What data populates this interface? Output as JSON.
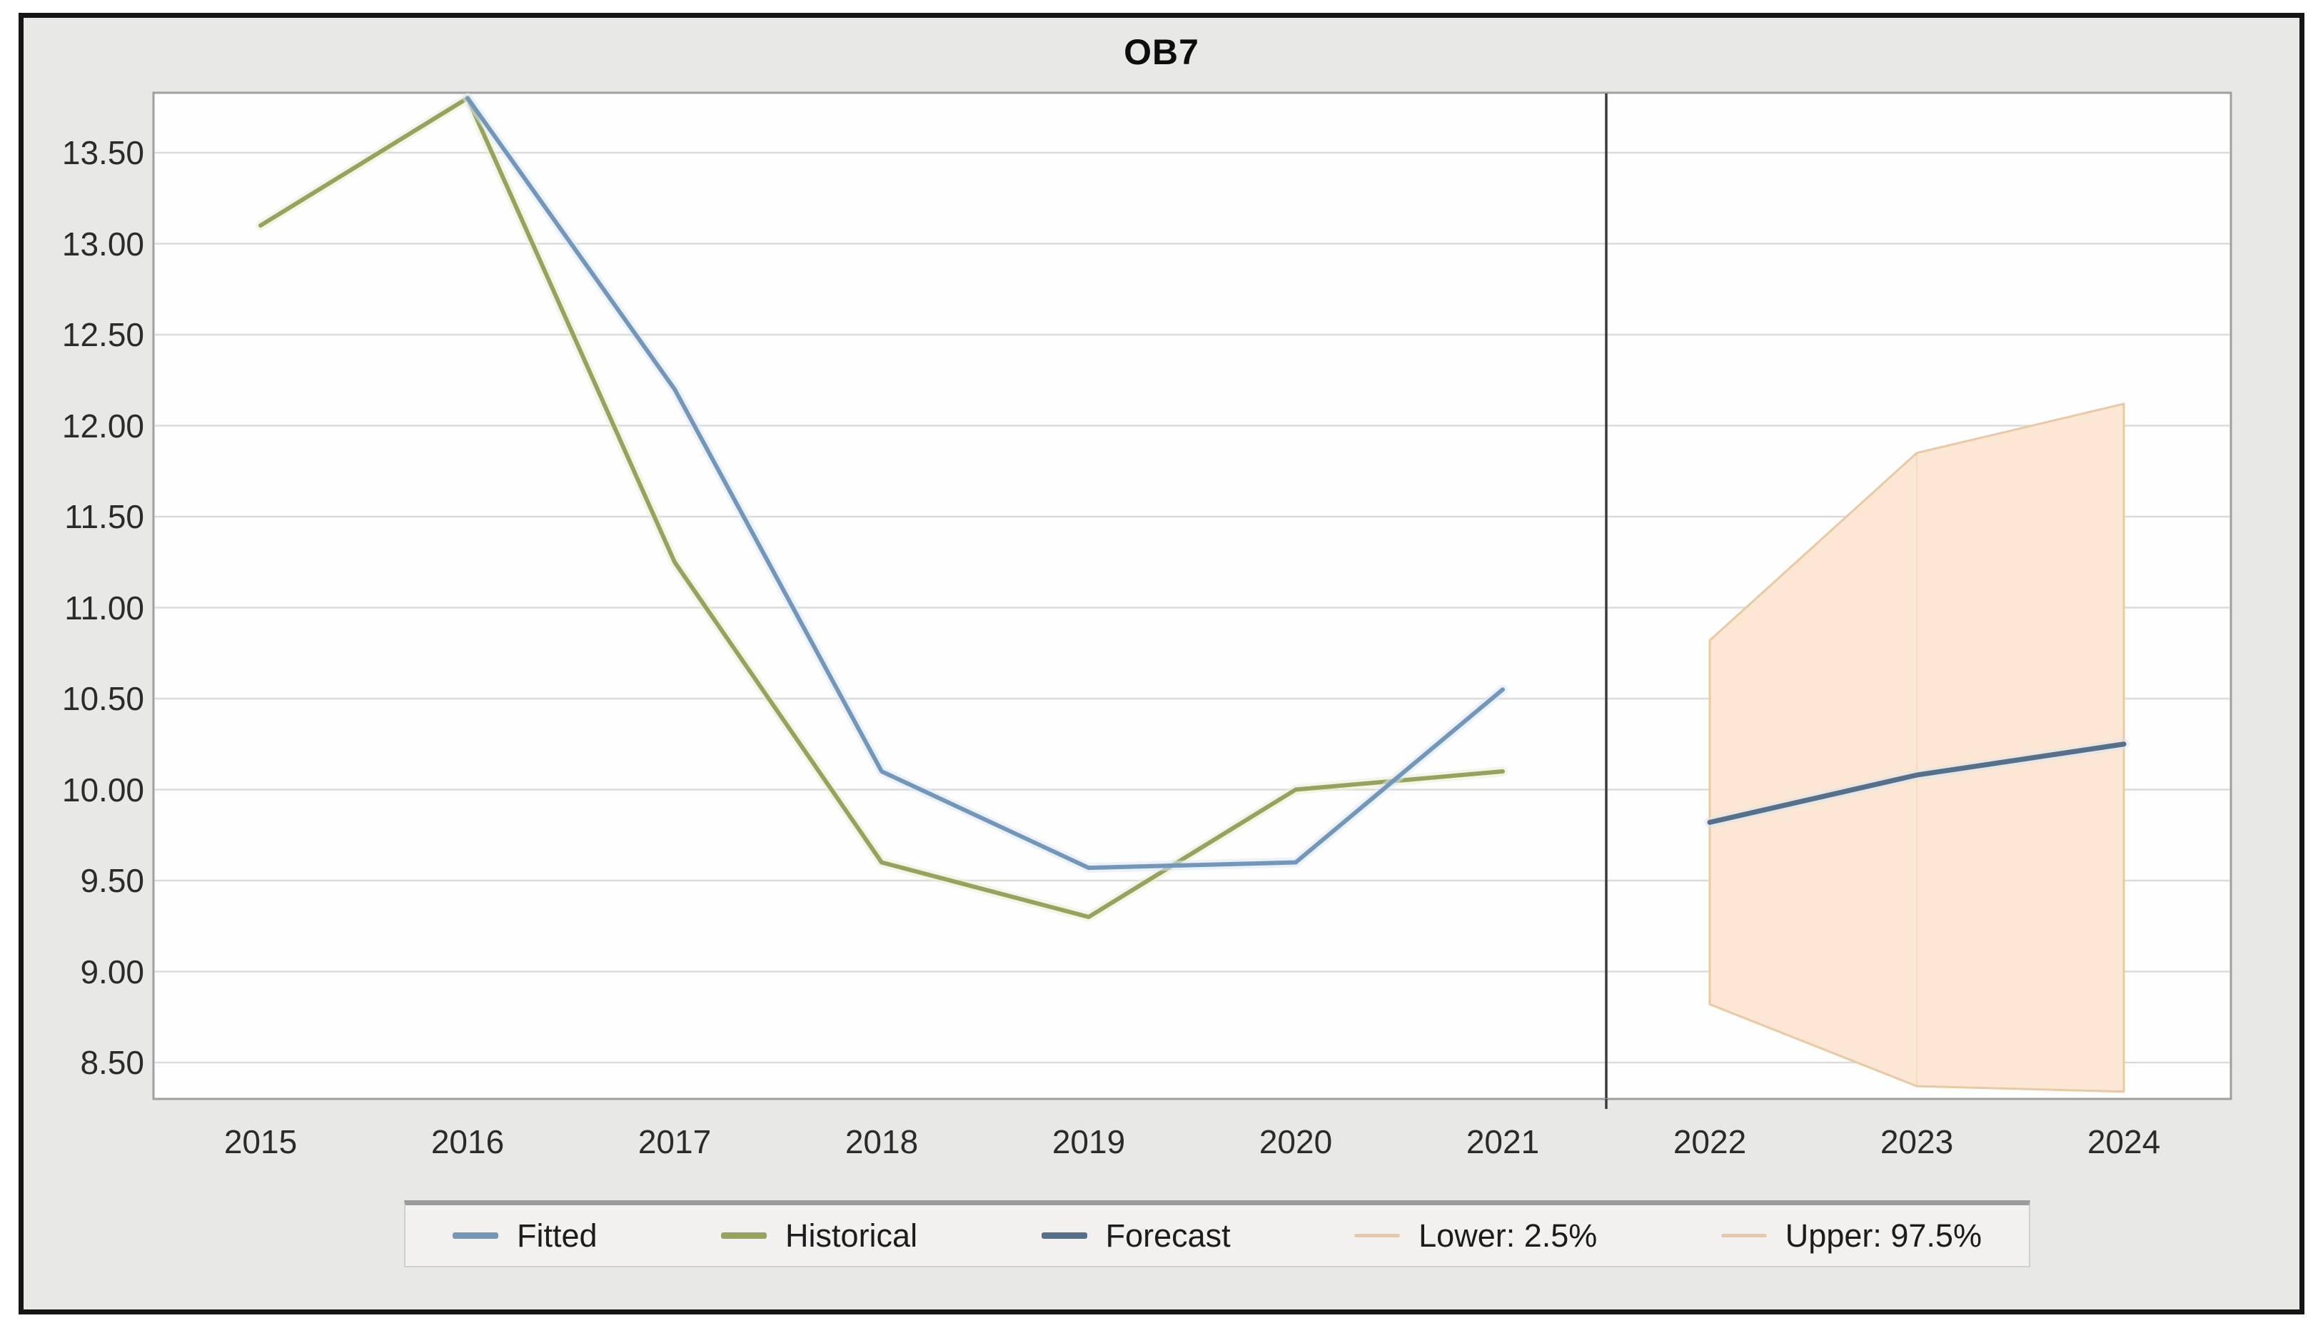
{
  "window": {
    "title": "OB7"
  },
  "chart_data": {
    "type": "line",
    "title": "OB7",
    "x": [
      2015,
      2016,
      2017,
      2018,
      2019,
      2020,
      2021,
      2022,
      2023,
      2024
    ],
    "x_tick_labels": [
      "2015",
      "2016",
      "2017",
      "2018",
      "2019",
      "2020",
      "2021",
      "2022",
      "2023",
      "2024"
    ],
    "y_tick_labels": [
      "13.50",
      "13.00",
      "12.50",
      "12.00",
      "11.50",
      "11.00",
      "10.50",
      "10.00",
      "9.50",
      "9.00",
      "8.50"
    ],
    "y_tick_values": [
      13.5,
      13.0,
      12.5,
      12.0,
      11.5,
      11.0,
      10.5,
      10.0,
      9.5,
      9.0,
      8.5
    ],
    "ylim": [
      8.3,
      13.83
    ],
    "grid": "horizontal-major-only",
    "forecast_divider_x": 2021.5,
    "series": [
      {
        "name": "Fitted",
        "x": [
          2016,
          2017,
          2018,
          2019,
          2020,
          2021
        ],
        "values": [
          13.8,
          12.2,
          10.1,
          9.57,
          9.6,
          10.55
        ],
        "color": "#7397ba",
        "halo": "#dde8f1",
        "width": 6
      },
      {
        "name": "Historical",
        "x": [
          2015,
          2016,
          2017,
          2018,
          2019,
          2020,
          2021
        ],
        "values": [
          13.1,
          13.8,
          11.25,
          9.6,
          9.3,
          10.0,
          10.1
        ],
        "color": "#96a35c",
        "halo": "#e9edd6",
        "width": 6
      },
      {
        "name": "Forecast",
        "x": [
          2022,
          2023,
          2024
        ],
        "values": [
          9.82,
          10.08,
          10.25
        ],
        "color": "#54708b",
        "halo": "#dbe3ea",
        "width": 7
      },
      {
        "name": "Lower: 2.5%",
        "x": [
          2022,
          2023,
          2024
        ],
        "values": [
          8.82,
          8.37,
          8.34
        ],
        "color": "#e9c9a4",
        "halo": "#fbe7d3",
        "width": 3
      },
      {
        "name": "Upper: 97.5%",
        "x": [
          2022,
          2023,
          2024
        ],
        "values": [
          10.82,
          11.85,
          12.12
        ],
        "color": "#e9c9a4",
        "halo": "#fbe7d3",
        "width": 3
      }
    ],
    "band": {
      "between": [
        "Lower: 2.5%",
        "Upper: 97.5%"
      ],
      "fill": "#fbe7d3",
      "edge": "#e9c9a4"
    },
    "legend": {
      "position": "bottom",
      "items": [
        {
          "label": "Fitted",
          "color": "#7397ba"
        },
        {
          "label": "Historical",
          "color": "#96a35c"
        },
        {
          "label": "Forecast",
          "color": "#54708b"
        },
        {
          "label": "Lower: 2.5%",
          "color": "#e9c9a4"
        },
        {
          "label": "Upper: 97.5%",
          "color": "#e9c9a4"
        }
      ]
    },
    "colors": {
      "canvas_bg": "#e8e8e6",
      "plot_bg": "#fefefe",
      "gridline": "#dbdbdb",
      "plot_border": "#9f9f9f",
      "divider": "#3c3c3c",
      "frame_border": "#151515",
      "tick_text": "#2b2b2b"
    }
  }
}
